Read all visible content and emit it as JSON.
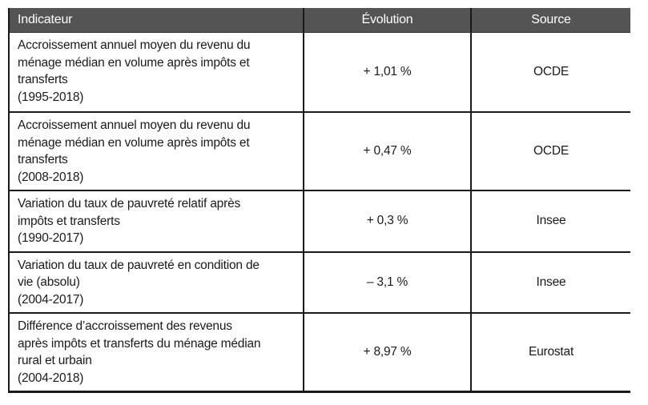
{
  "header": {
    "indicator": "Indicateur",
    "evolution": "Évolution",
    "source": "Source"
  },
  "rows": [
    {
      "indicator": "Accroissement annuel moyen du revenu du\nménage médian en volume après impôts et\ntransferts",
      "period": "(1995-2018)",
      "evolution": "+ 1,01 %",
      "source": "OCDE"
    },
    {
      "indicator": "Accroissement annuel moyen du revenu du\nménage médian en volume après impôts et\ntransferts",
      "period": "(2008-2018)",
      "evolution": "+ 0,47 %",
      "source": "OCDE"
    },
    {
      "indicator": "Variation du taux de pauvreté relatif après\nimpôts et transferts",
      "period": "(1990-2017)",
      "evolution": "+ 0,3 %",
      "source": "Insee"
    },
    {
      "indicator": "Variation du taux de pauvreté en condition de\nvie (absolu)",
      "period": "(2004-2017)",
      "evolution": "– 3,1 %",
      "source": "Insee"
    },
    {
      "indicator": "Différence d’accroissement des revenus\naprès impôts et transferts du ménage médian\nrural et urbain",
      "period": "(2004-2018)",
      "evolution": "+ 8,97 %",
      "source": "Eurostat"
    }
  ],
  "colors": {
    "header_bg": "#545454",
    "header_text": "#ffffff",
    "body_text": "#1a1a1a",
    "rule": "#1a1a1a"
  }
}
